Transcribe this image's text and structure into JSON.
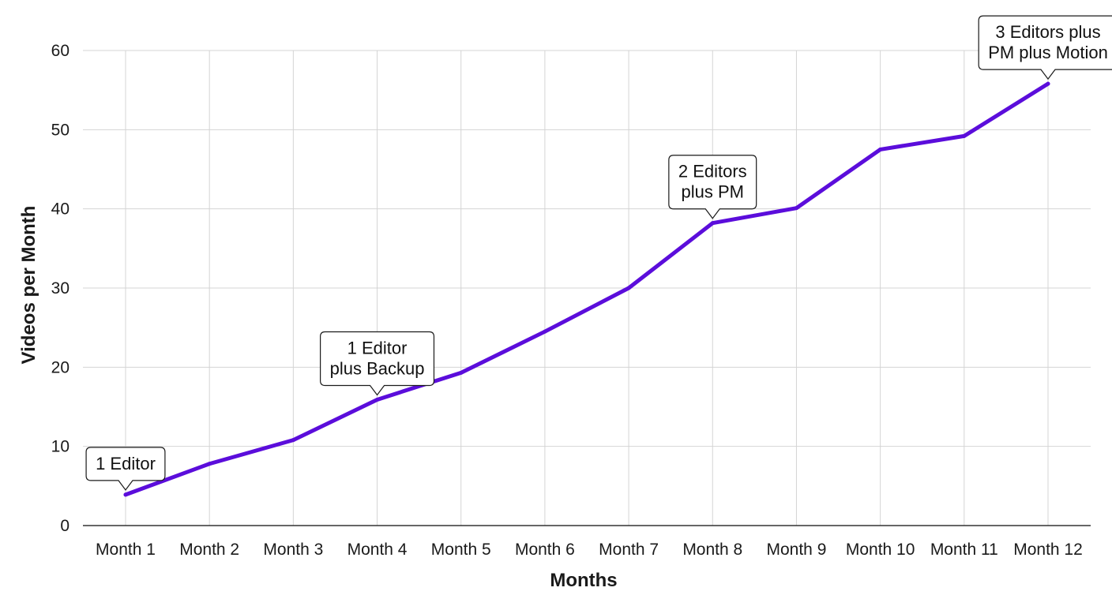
{
  "chart_data": {
    "type": "line",
    "title": "",
    "xlabel": "Months",
    "ylabel": "Videos per Month",
    "categories": [
      "Month 1",
      "Month 2",
      "Month 3",
      "Month 4",
      "Month 5",
      "Month 6",
      "Month 7",
      "Month 8",
      "Month 9",
      "Month 10",
      "Month 11",
      "Month 12"
    ],
    "series": [
      {
        "values": [
          3.9,
          7.8,
          10.8,
          15.9,
          19.3,
          24.5,
          30.0,
          38.2,
          40.1,
          47.5,
          49.2,
          55.8
        ],
        "color": "#5b0ddb"
      }
    ],
    "ylim": [
      0,
      60
    ],
    "yticks": [
      0,
      10,
      20,
      30,
      40,
      50,
      60
    ],
    "grid": true,
    "legend": "none",
    "annotations": [
      {
        "category_index": 0,
        "lines": [
          "1 Editor"
        ]
      },
      {
        "category_index": 3,
        "lines": [
          "1 Editor",
          "plus Backup"
        ]
      },
      {
        "category_index": 7,
        "lines": [
          "2 Editors",
          "plus PM"
        ]
      },
      {
        "category_index": 11,
        "lines": [
          "3 Editors plus",
          "PM plus Motion"
        ]
      }
    ]
  }
}
